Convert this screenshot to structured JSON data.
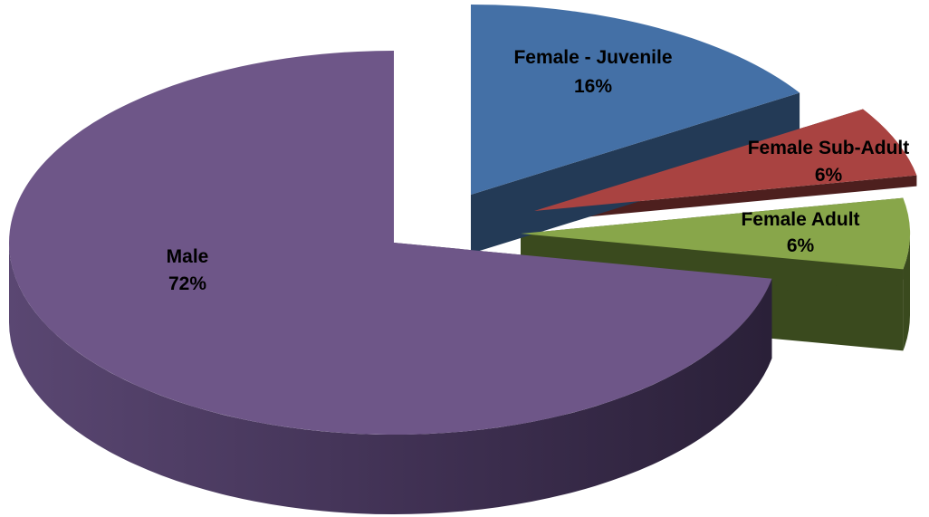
{
  "chart_data": {
    "type": "pie",
    "categories": [
      "Female - Juvenile",
      "Female Sub-Adult",
      "Female Adult",
      "Male"
    ],
    "values": [
      16,
      6,
      6,
      72
    ],
    "percent_labels": [
      "16%",
      "6%",
      "6%",
      "72%"
    ],
    "colors": {
      "Female - Juvenile": "#4470a6",
      "Female Sub-Adult": "#a94341",
      "Female Adult": "#88a64a",
      "Male": "#6e5688"
    },
    "side_colors": {
      "Female - Juvenile": "#233a56",
      "Female Sub-Adult": "#4d1f1e",
      "Female Adult": "#3a4a1e",
      "Male": "#3c2c4e"
    },
    "style": "3d-exploded",
    "legend": "none"
  }
}
